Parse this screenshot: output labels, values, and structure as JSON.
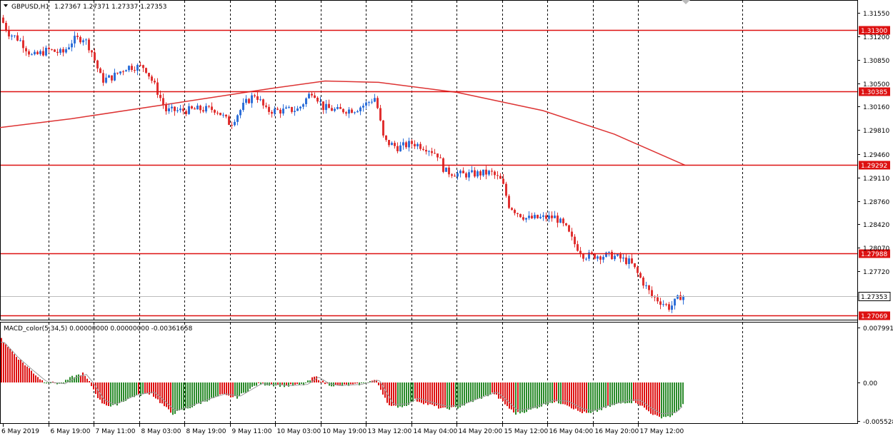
{
  "header": {
    "symbol": "GBPUSD,H1",
    "ohlc": "1.27367 1.27371 1.27337 1.27353"
  },
  "indicator": {
    "label": "MACD_color(5,34,5) 0.00000000 0.00000000 -0.00361658"
  },
  "price_axis": {
    "ticks": [
      "1.31550",
      "1.31200",
      "1.30850",
      "1.30500",
      "1.30160",
      "1.29810",
      "1.29460",
      "1.29110",
      "1.28760",
      "1.28420",
      "1.28070",
      "1.27720"
    ],
    "tick_values": [
      1.3155,
      1.312,
      1.3085,
      1.305,
      1.3016,
      1.2981,
      1.2946,
      1.2911,
      1.2876,
      1.2842,
      1.2807,
      1.2772
    ],
    "min": 1.27,
    "max": 1.317
  },
  "levels": [
    {
      "label": "1.31300",
      "value": 1.313
    },
    {
      "label": "1.30385",
      "value": 1.30385
    },
    {
      "label": "1.29292",
      "value": 1.29292
    },
    {
      "label": "1.27988",
      "value": 1.27988
    },
    {
      "label": "1.27069",
      "value": 1.27069
    }
  ],
  "current_price": {
    "label": "1.27353",
    "value": 1.27353
  },
  "macd_axis": {
    "ticks": [
      "0.0079914",
      "0.00",
      "-0.005528"
    ],
    "tick_values": [
      0.0079914,
      0,
      -0.005528
    ],
    "min": -0.0058,
    "max": 0.0083
  },
  "time_axis": {
    "labels": [
      "6 May 2019",
      "6 May 19:00",
      "7 May 11:00",
      "8 May 03:00",
      "8 May 19:00",
      "9 May 11:00",
      "10 May 03:00",
      "10 May 19:00",
      "13 May 12:00",
      "14 May 04:00",
      "14 May 20:00",
      "15 May 12:00",
      "16 May 04:00",
      "16 May 20:00",
      "17 May 12:00"
    ]
  },
  "colors": {
    "bull": "#2e6fd8",
    "bear": "#e03030",
    "level": "#d11",
    "ma": "#d33",
    "hist_pos": "#d11",
    "hist_neg": "#2a8a2a",
    "grid": "#000"
  },
  "chart_data": {
    "type": "candlestick",
    "ma_line": [
      [
        0,
        1.2985
      ],
      [
        100,
        1.2998
      ],
      [
        250,
        1.3022
      ],
      [
        380,
        1.3043
      ],
      [
        455,
        1.3054
      ],
      [
        530,
        1.3052
      ],
      [
        640,
        1.3037
      ],
      [
        760,
        1.301
      ],
      [
        860,
        1.2975
      ],
      [
        959,
        1.2929
      ]
    ],
    "anchors": [
      [
        3,
        1.3148
      ],
      [
        15,
        1.3125
      ],
      [
        30,
        1.3115
      ],
      [
        48,
        1.309
      ],
      [
        70,
        1.31
      ],
      [
        90,
        1.3095
      ],
      [
        105,
        1.3115
      ],
      [
        120,
        1.3118
      ],
      [
        130,
        1.31
      ],
      [
        145,
        1.3055
      ],
      [
        160,
        1.306
      ],
      [
        180,
        1.3075
      ],
      [
        205,
        1.3075
      ],
      [
        220,
        1.3045
      ],
      [
        235,
        1.301
      ],
      [
        260,
        1.301
      ],
      [
        280,
        1.3012
      ],
      [
        305,
        1.3012
      ],
      [
        325,
        1.299
      ],
      [
        345,
        1.302
      ],
      [
        360,
        1.3035
      ],
      [
        375,
        1.301
      ],
      [
        400,
        1.301
      ],
      [
        420,
        1.3012
      ],
      [
        440,
        1.304
      ],
      [
        455,
        1.3015
      ],
      [
        475,
        1.301
      ],
      [
        500,
        1.3012
      ],
      [
        515,
        1.302
      ],
      [
        528,
        1.303
      ],
      [
        540,
        1.2965
      ],
      [
        560,
        1.2955
      ],
      [
        580,
        1.2962
      ],
      [
        600,
        1.2955
      ],
      [
        615,
        1.2945
      ],
      [
        625,
        1.292
      ],
      [
        650,
        1.2915
      ],
      [
        690,
        1.2918
      ],
      [
        705,
        1.2905
      ],
      [
        715,
        1.287
      ],
      [
        725,
        1.286
      ],
      [
        740,
        1.285
      ],
      [
        780,
        1.2852
      ],
      [
        795,
        1.2835
      ],
      [
        805,
        1.2815
      ],
      [
        820,
        1.2795
      ],
      [
        860,
        1.2795
      ],
      [
        885,
        1.2785
      ],
      [
        900,
        1.276
      ],
      [
        915,
        1.2735
      ],
      [
        930,
        1.2725
      ],
      [
        940,
        1.2718
      ],
      [
        955,
        1.2735
      ]
    ],
    "macd_hist_anchors": [
      [
        0,
        0.0065
      ],
      [
        20,
        0.004
      ],
      [
        45,
        0.0015
      ],
      [
        60,
        0.0001
      ],
      [
        85,
        -0.0002
      ],
      [
        100,
        0.0008
      ],
      [
        115,
        0.0013
      ],
      [
        125,
        -0.0001
      ],
      [
        140,
        -0.0028
      ],
      [
        155,
        -0.0035
      ],
      [
        185,
        -0.002
      ],
      [
        210,
        -0.0015
      ],
      [
        225,
        -0.003
      ],
      [
        240,
        -0.0045
      ],
      [
        260,
        -0.0038
      ],
      [
        290,
        -0.0025
      ],
      [
        310,
        -0.0018
      ],
      [
        330,
        -0.0022
      ],
      [
        345,
        -0.0012
      ],
      [
        360,
        -0.0002
      ],
      [
        375,
        -0.0003
      ],
      [
        400,
        -0.0005
      ],
      [
        425,
        -0.0003
      ],
      [
        440,
        0.0009
      ],
      [
        455,
        -0.0002
      ],
      [
        470,
        -0.0005
      ],
      [
        500,
        -0.0003
      ],
      [
        525,
        0.0004
      ],
      [
        532,
        -0.001
      ],
      [
        545,
        -0.0035
      ],
      [
        565,
        -0.0034
      ],
      [
        580,
        -0.0025
      ],
      [
        600,
        -0.0032
      ],
      [
        620,
        -0.0038
      ],
      [
        640,
        -0.0036
      ],
      [
        665,
        -0.0025
      ],
      [
        690,
        -0.0015
      ],
      [
        705,
        -0.003
      ],
      [
        720,
        -0.0045
      ],
      [
        740,
        -0.004
      ],
      [
        770,
        -0.0028
      ],
      [
        790,
        -0.003
      ],
      [
        810,
        -0.0042
      ],
      [
        825,
        -0.0045
      ],
      [
        850,
        -0.0035
      ],
      [
        875,
        -0.0028
      ],
      [
        890,
        -0.0028
      ],
      [
        905,
        -0.004
      ],
      [
        920,
        -0.005
      ],
      [
        940,
        -0.0048
      ],
      [
        957,
        -0.003
      ]
    ]
  }
}
